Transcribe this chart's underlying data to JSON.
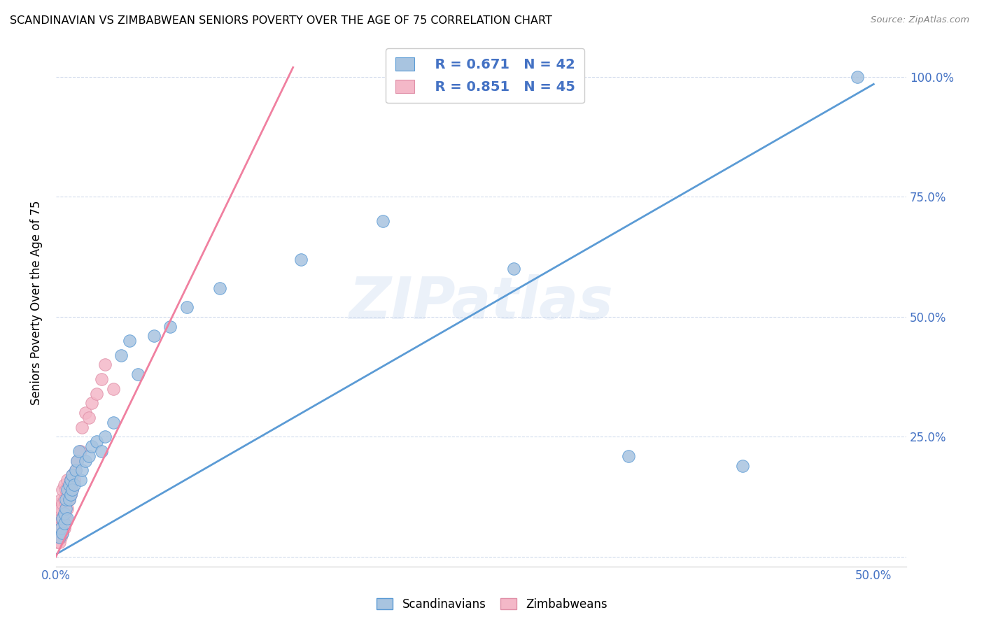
{
  "title": "SCANDINAVIAN VS ZIMBABWEAN SENIORS POVERTY OVER THE AGE OF 75 CORRELATION CHART",
  "source": "Source: ZipAtlas.com",
  "ylabel": "Seniors Poverty Over the Age of 75",
  "xlim": [
    0.0,
    0.52
  ],
  "ylim": [
    -0.02,
    1.08
  ],
  "xticks": [
    0.0,
    0.1,
    0.2,
    0.3,
    0.4,
    0.5
  ],
  "yticks": [
    0.0,
    0.25,
    0.5,
    0.75,
    1.0
  ],
  "ytick_labels": [
    "",
    "25.0%",
    "50.0%",
    "75.0%",
    "100.0%"
  ],
  "xtick_labels": [
    "0.0%",
    "",
    "",
    "",
    "",
    "50.0%"
  ],
  "blue_R": "R = 0.671",
  "blue_N": "N = 42",
  "pink_R": "R = 0.851",
  "pink_N": "N = 45",
  "blue_color": "#a8c4e0",
  "pink_color": "#f4b8c8",
  "blue_line_color": "#5b9bd5",
  "pink_line_color": "#f080a0",
  "blue_edge_color": "#5b9bd5",
  "pink_edge_color": "#e090a8",
  "legend_text_color": "#4472c4",
  "watermark": "ZIPatlas",
  "blue_scatter_x": [
    0.002,
    0.003,
    0.004,
    0.004,
    0.005,
    0.005,
    0.006,
    0.006,
    0.007,
    0.007,
    0.008,
    0.008,
    0.009,
    0.009,
    0.01,
    0.01,
    0.011,
    0.012,
    0.013,
    0.014,
    0.015,
    0.016,
    0.018,
    0.02,
    0.022,
    0.025,
    0.028,
    0.03,
    0.035,
    0.04,
    0.045,
    0.05,
    0.06,
    0.07,
    0.08,
    0.1,
    0.15,
    0.2,
    0.28,
    0.35,
    0.42,
    0.49
  ],
  "blue_scatter_y": [
    0.04,
    0.06,
    0.05,
    0.08,
    0.07,
    0.09,
    0.1,
    0.12,
    0.08,
    0.14,
    0.12,
    0.15,
    0.13,
    0.16,
    0.14,
    0.17,
    0.15,
    0.18,
    0.2,
    0.22,
    0.16,
    0.18,
    0.2,
    0.21,
    0.23,
    0.24,
    0.22,
    0.25,
    0.28,
    0.42,
    0.45,
    0.38,
    0.46,
    0.48,
    0.52,
    0.56,
    0.62,
    0.7,
    0.6,
    0.21,
    0.19,
    1.0
  ],
  "pink_scatter_x": [
    0.001,
    0.001,
    0.001,
    0.002,
    0.002,
    0.002,
    0.002,
    0.002,
    0.003,
    0.003,
    0.003,
    0.003,
    0.003,
    0.004,
    0.004,
    0.004,
    0.004,
    0.005,
    0.005,
    0.005,
    0.005,
    0.006,
    0.006,
    0.006,
    0.007,
    0.007,
    0.007,
    0.008,
    0.008,
    0.009,
    0.009,
    0.01,
    0.01,
    0.011,
    0.012,
    0.013,
    0.015,
    0.016,
    0.018,
    0.02,
    0.022,
    0.025,
    0.028,
    0.03,
    0.035
  ],
  "pink_scatter_y": [
    0.03,
    0.05,
    0.07,
    0.03,
    0.05,
    0.07,
    0.09,
    0.11,
    0.04,
    0.06,
    0.08,
    0.1,
    0.12,
    0.05,
    0.08,
    0.11,
    0.14,
    0.06,
    0.09,
    0.12,
    0.15,
    0.08,
    0.11,
    0.14,
    0.1,
    0.13,
    0.16,
    0.12,
    0.15,
    0.13,
    0.16,
    0.14,
    0.17,
    0.16,
    0.18,
    0.2,
    0.22,
    0.27,
    0.3,
    0.29,
    0.32,
    0.34,
    0.37,
    0.4,
    0.35
  ],
  "blue_line_x0": 0.0,
  "blue_line_x1": 0.5,
  "blue_line_y0": 0.005,
  "blue_line_y1": 0.985,
  "pink_line_x0": 0.0,
  "pink_line_x1": 0.145,
  "pink_line_y0": 0.0,
  "pink_line_y1": 1.02
}
